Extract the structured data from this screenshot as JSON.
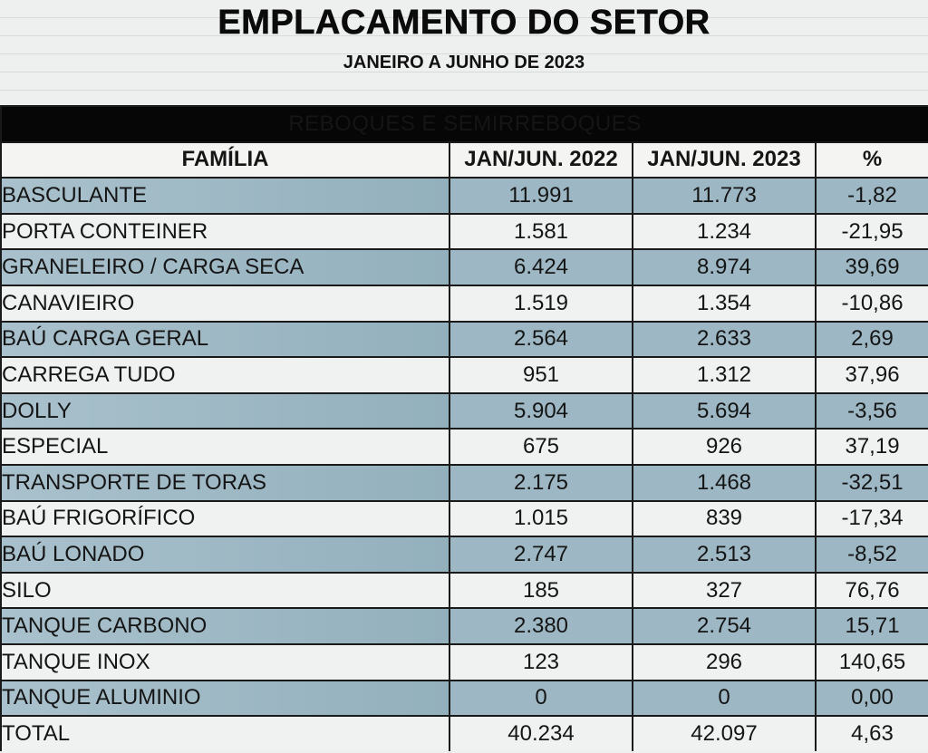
{
  "title": "EMPLACAMENTO DO SETOR",
  "subtitle": "JANEIRO A JUNHO DE 2023",
  "table": {
    "section": "REBOQUES E SEMIRREBOQUES",
    "headers": [
      "FAMÍLIA",
      "JAN/JUN. 2022",
      "JAN/JUN. 2023",
      "%"
    ],
    "rows": [
      {
        "familia": "BASCULANTE",
        "y2022": "11.991",
        "y2023": "11.773",
        "pct": "-1,82",
        "highlight": true
      },
      {
        "familia": "PORTA CONTEINER",
        "y2022": "1.581",
        "y2023": "1.234",
        "pct": "-21,95",
        "highlight": false
      },
      {
        "familia": "GRANELEIRO / CARGA SECA",
        "y2022": "6.424",
        "y2023": "8.974",
        "pct": "39,69",
        "highlight": true
      },
      {
        "familia": "CANAVIEIRO",
        "y2022": "1.519",
        "y2023": "1.354",
        "pct": "-10,86",
        "highlight": false
      },
      {
        "familia": "BAÚ CARGA GERAL",
        "y2022": "2.564",
        "y2023": "2.633",
        "pct": "2,69",
        "highlight": true
      },
      {
        "familia": "CARREGA TUDO",
        "y2022": "951",
        "y2023": "1.312",
        "pct": "37,96",
        "highlight": false
      },
      {
        "familia": "DOLLY",
        "y2022": "5.904",
        "y2023": "5.694",
        "pct": "-3,56",
        "highlight": true
      },
      {
        "familia": "ESPECIAL",
        "y2022": "675",
        "y2023": "926",
        "pct": "37,19",
        "highlight": false
      },
      {
        "familia": "TRANSPORTE DE TORAS",
        "y2022": "2.175",
        "y2023": "1.468",
        "pct": "-32,51",
        "highlight": true
      },
      {
        "familia": "BAÚ FRIGORÍFICO",
        "y2022": "1.015",
        "y2023": "839",
        "pct": "-17,34",
        "highlight": false
      },
      {
        "familia": "BAÚ LONADO",
        "y2022": "2.747",
        "y2023": "2.513",
        "pct": "-8,52",
        "highlight": true
      },
      {
        "familia": "SILO",
        "y2022": "185",
        "y2023": "327",
        "pct": "76,76",
        "highlight": false
      },
      {
        "familia": "TANQUE CARBONO",
        "y2022": "2.380",
        "y2023": "2.754",
        "pct": "15,71",
        "highlight": true
      },
      {
        "familia": "TANQUE INOX",
        "y2022": "123",
        "y2023": "296",
        "pct": "140,65",
        "highlight": false
      },
      {
        "familia": "TANQUE ALUMINIO",
        "y2022": "0",
        "y2023": "0",
        "pct": "0,00",
        "highlight": true
      }
    ],
    "total": {
      "familia": "TOTAL",
      "y2022": "40.234",
      "y2023": "42.097",
      "pct": "4,63"
    }
  },
  "colors": {
    "highlight_row": "#9db8c4",
    "band": "#060606",
    "background": "#eef0ef"
  }
}
